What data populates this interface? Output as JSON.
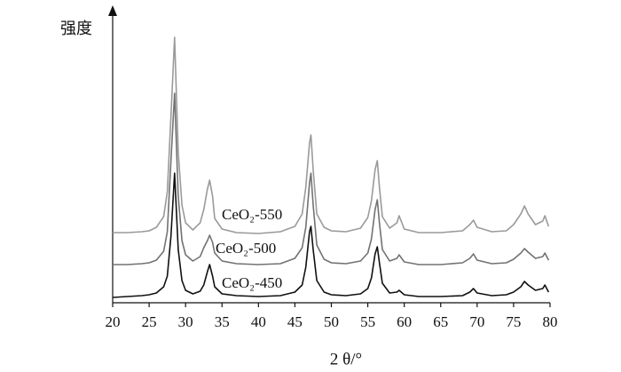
{
  "chart_data": {
    "type": "line",
    "ylabel": "强度",
    "xlabel": "2 θ/°",
    "xlim": [
      20,
      80
    ],
    "xticks": [
      20,
      25,
      30,
      35,
      40,
      45,
      50,
      55,
      60,
      65,
      70,
      75,
      80
    ],
    "ylim": [
      0,
      331
    ],
    "x": [
      20,
      22,
      24,
      25,
      26,
      27,
      27.5,
      28,
      28.5,
      29,
      29.5,
      30,
      31,
      32,
      32.5,
      33,
      33.3,
      33.7,
      34,
      35,
      37,
      40,
      43,
      45,
      46,
      46.5,
      47,
      47.2,
      47.5,
      48,
      49,
      50,
      52,
      54,
      55,
      55.5,
      56,
      56.3,
      56.6,
      57,
      58,
      59,
      59.3,
      60,
      62,
      65,
      68,
      69,
      69.5,
      70,
      72,
      74,
      75,
      76,
      76.5,
      77,
      78,
      79,
      79.3,
      79.8
    ],
    "series": [
      {
        "name": "CeO₂-550",
        "color": "#9a9a9a",
        "values": [
          79,
          79,
          80,
          81,
          85,
          97,
          125,
          210,
          299,
          170,
          110,
          90,
          82,
          90,
          105,
          128,
          138,
          120,
          95,
          83,
          79,
          78,
          80,
          86,
          100,
          130,
          180,
          189,
          150,
          100,
          85,
          81,
          80,
          84,
          96,
          115,
          150,
          160,
          130,
          97,
          84,
          90,
          98,
          83,
          79,
          79,
          81,
          88,
          93,
          85,
          80,
          81,
          88,
          100,
          109,
          100,
          88,
          92,
          98,
          86
        ]
      },
      {
        "name": "CeO₂-500",
        "color": "#727272",
        "values": [
          43,
          43,
          44,
          45,
          48,
          58,
          80,
          160,
          236,
          120,
          70,
          54,
          47,
          52,
          62,
          70,
          76,
          68,
          56,
          47,
          44,
          43,
          44,
          50,
          62,
          85,
          135,
          146,
          110,
          65,
          49,
          45,
          44,
          47,
          56,
          72,
          105,
          116,
          90,
          60,
          47,
          50,
          54,
          46,
          43,
          43,
          45,
          50,
          55,
          48,
          44,
          45,
          49,
          56,
          61,
          57,
          50,
          52,
          56,
          48
        ]
      },
      {
        "name": "CeO₂-450",
        "color": "#111111",
        "values": [
          6,
          7,
          8,
          9,
          11,
          18,
          30,
          75,
          146,
          60,
          25,
          14,
          10,
          13,
          20,
          35,
          43,
          30,
          18,
          10,
          8,
          7,
          8,
          12,
          20,
          40,
          80,
          86,
          60,
          25,
          12,
          9,
          8,
          10,
          16,
          28,
          55,
          63,
          45,
          22,
          11,
          12,
          14,
          9,
          7,
          7,
          8,
          12,
          16,
          11,
          8,
          9,
          12,
          18,
          24,
          20,
          14,
          16,
          20,
          12
        ]
      }
    ]
  }
}
